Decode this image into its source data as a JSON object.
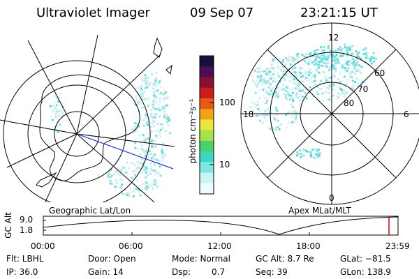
{
  "header": {
    "instrument": "Ultraviolet Imager",
    "date": "09 Sep 07",
    "time": "23:21:15 UT"
  },
  "colorbar": {
    "unit_label": "photon cm⁻²s⁻¹",
    "ticks": [
      "100",
      "10"
    ],
    "scale": "log",
    "colors": [
      "#1a0f3c",
      "#4b0f5a",
      "#8a1030",
      "#c81e1e",
      "#e85a14",
      "#f2a21a",
      "#e8e63a",
      "#a8e24a",
      "#4ad26a",
      "#3ed6c0",
      "#7ee6e6",
      "#c8f4f4",
      "#eefcfc"
    ]
  },
  "left_panel": {
    "caption": "Geographic Lat/Lon"
  },
  "right_panel": {
    "caption": "Apex MLat/MLT",
    "mlt_labels": [
      "12",
      "18",
      "6",
      "0"
    ],
    "mlat_labels": [
      "60",
      "70",
      "80"
    ]
  },
  "timeline": {
    "axis_label": "GC Alt",
    "y_ticks": [
      "9.0",
      "1.8"
    ],
    "x_ticks": [
      "00:00",
      "06:00",
      "12:00",
      "18:00",
      "23:59"
    ],
    "current_marker_color": "#cc0000"
  },
  "info": {
    "row1": {
      "flt": "Flt: LBHL",
      "door": "Door: Open",
      "mode": "Mode: Normal",
      "gcalt": "GC Alt: 8.7 Re",
      "glat": "GLat: −81.5"
    },
    "row2": {
      "ip": "IP: 36.0",
      "gain": "Gain: 14",
      "dsp_label": "Dsp:",
      "dsp_value": "0.7",
      "seq": "Seq: 39",
      "glon": "GLon: 138.9"
    }
  }
}
